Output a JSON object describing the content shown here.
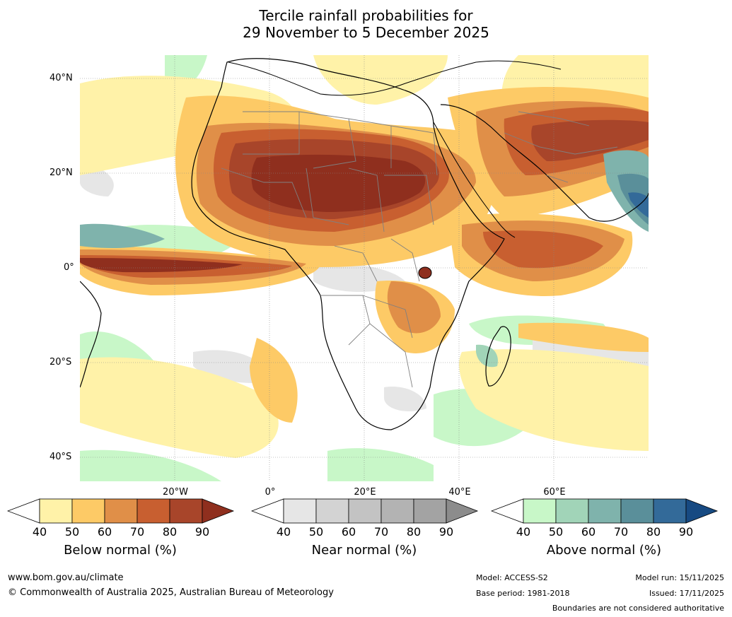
{
  "title": {
    "line1": "Tercile rainfall probabilities for",
    "line2": "29 November to 5 December 2025"
  },
  "map": {
    "lat_labels": [
      "40°N",
      "20°N",
      "0°",
      "20°S",
      "40°S"
    ],
    "lon_labels": [
      "20°W",
      "0°",
      "20°E",
      "40°E",
      "60°E"
    ]
  },
  "colorbars": [
    {
      "title": "Below normal (%)",
      "ticks": [
        "40",
        "50",
        "60",
        "70",
        "80",
        "90"
      ],
      "colors": [
        "#fff2a8",
        "#fdca66",
        "#e08f48",
        "#c85f30",
        "#a8452a",
        "#8f2f1e"
      ]
    },
    {
      "title": "Near normal (%)",
      "ticks": [
        "40",
        "50",
        "60",
        "70",
        "80",
        "90"
      ],
      "colors": [
        "#e6e6e6",
        "#d3d3d3",
        "#c3c3c3",
        "#b3b3b3",
        "#a3a3a3",
        "#8c8c8c"
      ]
    },
    {
      "title": "Above normal (%)",
      "ticks": [
        "40",
        "50",
        "60",
        "70",
        "80",
        "90"
      ],
      "colors": [
        "#c8f7c8",
        "#a1d4b8",
        "#7fb3ac",
        "#5a8f9a",
        "#336a99",
        "#174a82"
      ]
    }
  ],
  "footer": {
    "website": "www.bom.gov.au/climate",
    "copyright": "© Commonwealth of Australia 2025, Australian Bureau of Meteorology",
    "model": "Model: ACCESS-S2",
    "base_period": "Base period: 1981-2018",
    "model_run": "Model run: 15/11/2025",
    "issued": "Issued: 17/11/2025",
    "disclaimer": "Boundaries are not considered authoritative"
  }
}
